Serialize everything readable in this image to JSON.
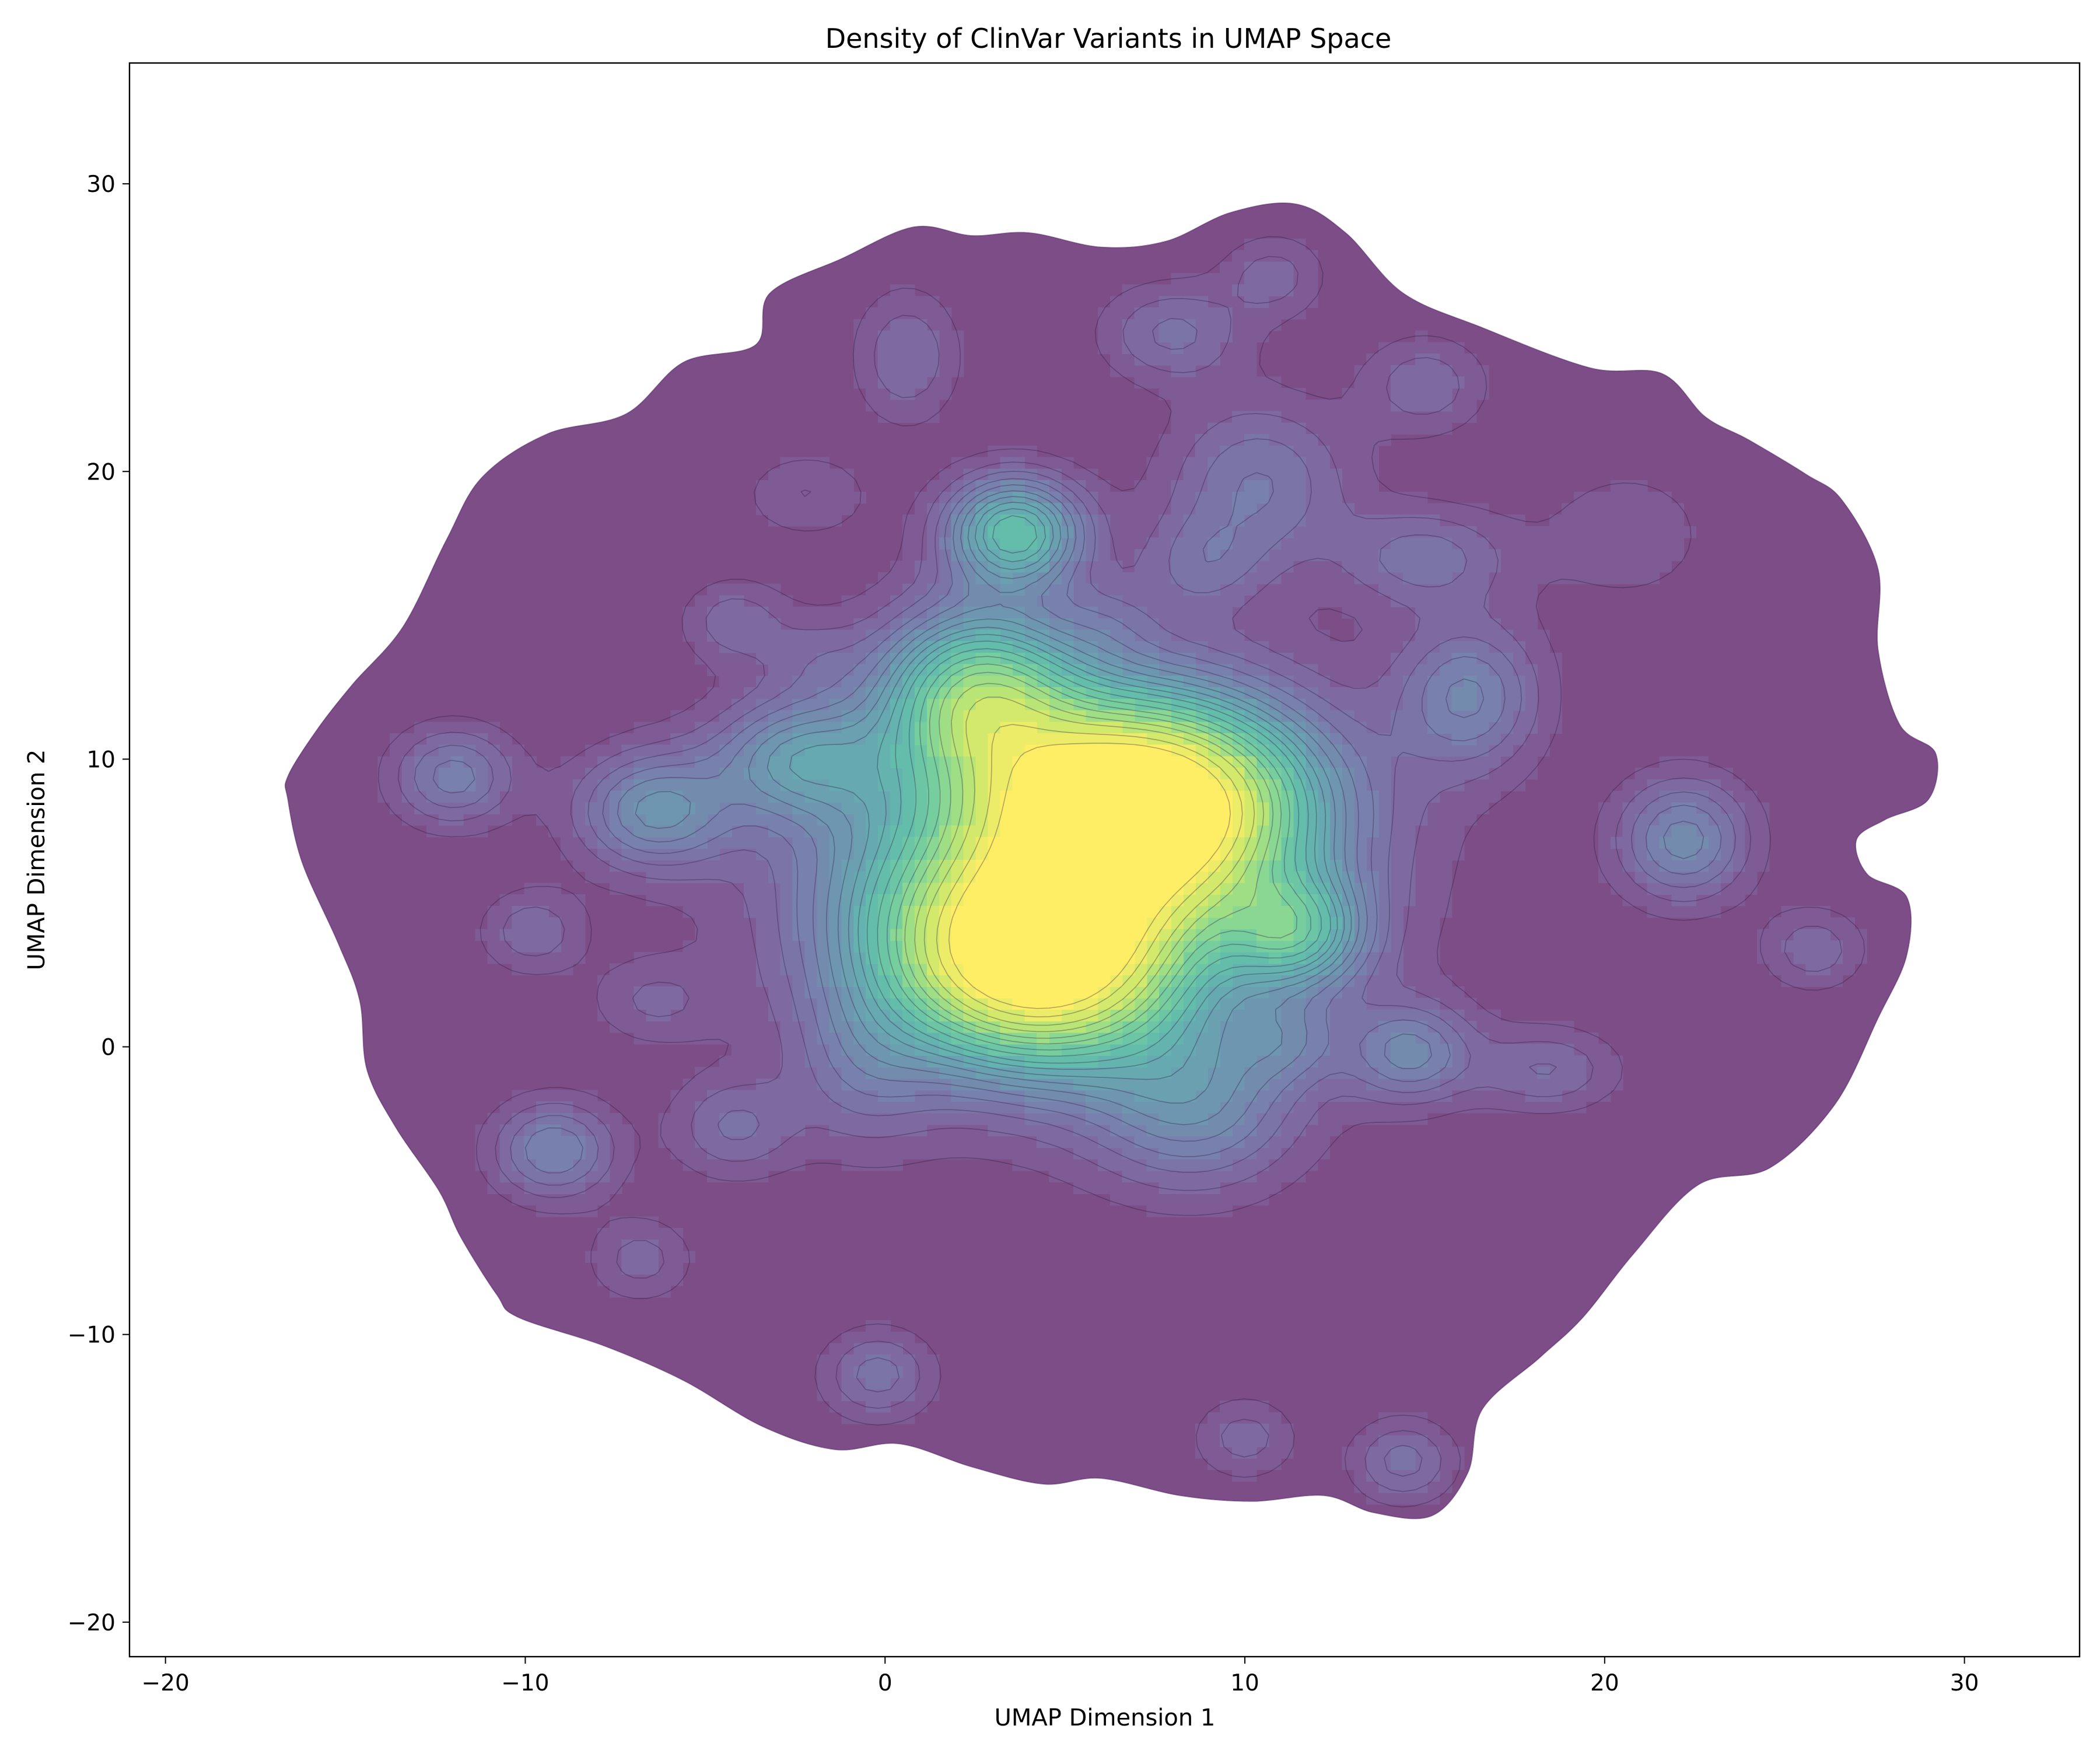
{
  "chart_data": {
    "type": "contour",
    "title": "Density of ClinVar Variants in UMAP Space",
    "xlabel": "UMAP Dimension 1",
    "ylabel": "UMAP Dimension 2",
    "xlim": [
      -21,
      33.2
    ],
    "ylim": [
      -21.2,
      34.2
    ],
    "xticks": [
      -20,
      -10,
      0,
      10,
      20,
      30
    ],
    "yticks": [
      -20,
      -10,
      0,
      10,
      20,
      30
    ],
    "xtick_labels": [
      "−20",
      "−10",
      "0",
      "10",
      "20",
      "30"
    ],
    "ytick_labels": [
      "−20",
      "−10",
      "0",
      "10",
      "20",
      "30"
    ],
    "grid": false,
    "colormap": "viridis",
    "fill_alpha": 0.7,
    "support_outline": [
      [
        -16.6,
        9.4
      ],
      [
        -15.8,
        11.0
      ],
      [
        -14.8,
        12.6
      ],
      [
        -13.4,
        14.6
      ],
      [
        -12.2,
        17.6
      ],
      [
        -11.2,
        19.8
      ],
      [
        -9.4,
        21.3
      ],
      [
        -7.2,
        22.0
      ],
      [
        -5.6,
        23.8
      ],
      [
        -3.6,
        24.4
      ],
      [
        -3.2,
        26.2
      ],
      [
        -1.2,
        27.4
      ],
      [
        0.8,
        28.5
      ],
      [
        2.4,
        28.2
      ],
      [
        4.0,
        28.3
      ],
      [
        6.0,
        27.8
      ],
      [
        7.8,
        28.0
      ],
      [
        9.6,
        29.0
      ],
      [
        11.4,
        29.3
      ],
      [
        12.8,
        28.3
      ],
      [
        14.4,
        26.2
      ],
      [
        16.6,
        25.0
      ],
      [
        19.6,
        23.6
      ],
      [
        21.6,
        23.4
      ],
      [
        22.8,
        21.9
      ],
      [
        24.0,
        21.1
      ],
      [
        25.6,
        19.9
      ],
      [
        26.6,
        19.0
      ],
      [
        27.6,
        16.6
      ],
      [
        27.6,
        13.8
      ],
      [
        28.2,
        11.2
      ],
      [
        29.2,
        10.2
      ],
      [
        29.0,
        8.6
      ],
      [
        27.8,
        7.9
      ],
      [
        27.0,
        7.2
      ],
      [
        27.3,
        6.0
      ],
      [
        28.4,
        5.2
      ],
      [
        28.4,
        3.2
      ],
      [
        27.6,
        1.0
      ],
      [
        26.4,
        -2.0
      ],
      [
        24.6,
        -4.2
      ],
      [
        22.6,
        -4.8
      ],
      [
        20.8,
        -7.2
      ],
      [
        19.4,
        -9.4
      ],
      [
        18.2,
        -10.8
      ],
      [
        16.6,
        -12.6
      ],
      [
        16.2,
        -14.8
      ],
      [
        15.2,
        -16.3
      ],
      [
        13.6,
        -16.2
      ],
      [
        12.2,
        -15.6
      ],
      [
        10.2,
        -15.8
      ],
      [
        8.2,
        -15.6
      ],
      [
        6.0,
        -15.0
      ],
      [
        4.4,
        -15.2
      ],
      [
        2.4,
        -14.6
      ],
      [
        0.4,
        -13.8
      ],
      [
        -1.4,
        -14.0
      ],
      [
        -3.4,
        -13.2
      ],
      [
        -5.6,
        -11.6
      ],
      [
        -7.8,
        -10.4
      ],
      [
        -10.2,
        -9.4
      ],
      [
        -10.8,
        -8.6
      ],
      [
        -11.8,
        -6.6
      ],
      [
        -12.4,
        -5.0
      ],
      [
        -13.6,
        -2.8
      ],
      [
        -14.4,
        -0.8
      ],
      [
        -14.6,
        1.6
      ],
      [
        -15.2,
        3.6
      ],
      [
        -16.2,
        6.4
      ],
      [
        -16.6,
        8.6
      ]
    ],
    "density_peaks": [
      {
        "x": 7.0,
        "y": 8.4,
        "sx": 3.0,
        "sy": 2.4,
        "w": 1.0
      },
      {
        "x": 4.2,
        "y": 3.2,
        "sx": 2.6,
        "sy": 2.4,
        "w": 0.93
      },
      {
        "x": 2.6,
        "y": 12.2,
        "sx": 1.8,
        "sy": 2.0,
        "w": 0.5
      },
      {
        "x": 3.6,
        "y": 17.9,
        "sx": 1.3,
        "sy": 1.3,
        "w": 0.43
      },
      {
        "x": 11.4,
        "y": 4.0,
        "sx": 1.3,
        "sy": 1.3,
        "w": 0.34
      },
      {
        "x": 5.2,
        "y": 6.0,
        "sx": 5.0,
        "sy": 4.6,
        "w": 0.3
      },
      {
        "x": -2.4,
        "y": 10.0,
        "sx": 1.6,
        "sy": 1.4,
        "w": 0.24
      },
      {
        "x": -6.4,
        "y": 8.2,
        "sx": 1.5,
        "sy": 1.4,
        "w": 0.24
      },
      {
        "x": 16.2,
        "y": 12.2,
        "sx": 1.4,
        "sy": 1.8,
        "w": 0.2
      },
      {
        "x": 22.2,
        "y": 7.2,
        "sx": 1.3,
        "sy": 1.5,
        "w": 0.22
      },
      {
        "x": 14.6,
        "y": -0.2,
        "sx": 1.2,
        "sy": 1.2,
        "w": 0.2
      },
      {
        "x": 8.6,
        "y": -2.0,
        "sx": 2.0,
        "sy": 2.0,
        "w": 0.2
      },
      {
        "x": -9.2,
        "y": -3.6,
        "sx": 1.2,
        "sy": 1.2,
        "w": 0.2
      },
      {
        "x": 10.4,
        "y": 19.6,
        "sx": 1.8,
        "sy": 2.0,
        "w": 0.16
      },
      {
        "x": -12.0,
        "y": 9.4,
        "sx": 1.2,
        "sy": 1.2,
        "w": 0.18
      },
      {
        "x": 15.0,
        "y": 17.0,
        "sx": 1.6,
        "sy": 1.2,
        "w": 0.14
      },
      {
        "x": 8.0,
        "y": 24.8,
        "sx": 1.4,
        "sy": 1.2,
        "w": 0.13
      },
      {
        "x": 0.6,
        "y": 24.0,
        "sx": 1.0,
        "sy": 1.6,
        "w": 0.12
      },
      {
        "x": -0.2,
        "y": -11.4,
        "sx": 1.1,
        "sy": 1.1,
        "w": 0.14
      },
      {
        "x": 14.4,
        "y": -14.4,
        "sx": 1.0,
        "sy": 1.0,
        "w": 0.14
      },
      {
        "x": 18.4,
        "y": -0.8,
        "sx": 1.4,
        "sy": 1.0,
        "w": 0.12
      },
      {
        "x": -4.2,
        "y": -2.8,
        "sx": 1.2,
        "sy": 1.2,
        "w": 0.12
      },
      {
        "x": 15.0,
        "y": 23.0,
        "sx": 1.2,
        "sy": 1.2,
        "w": 0.11
      },
      {
        "x": 25.8,
        "y": 3.4,
        "sx": 1.0,
        "sy": 1.0,
        "w": 0.11
      },
      {
        "x": -9.8,
        "y": 4.0,
        "sx": 1.0,
        "sy": 1.0,
        "w": 0.11
      },
      {
        "x": -4.2,
        "y": 14.8,
        "sx": 1.0,
        "sy": 1.0,
        "w": 0.1
      },
      {
        "x": 10.8,
        "y": 26.8,
        "sx": 1.0,
        "sy": 1.0,
        "w": 0.1
      },
      {
        "x": 11.2,
        "y": 0.2,
        "sx": 1.0,
        "sy": 1.0,
        "w": 0.1
      },
      {
        "x": -6.8,
        "y": -7.4,
        "sx": 1.0,
        "sy": 1.0,
        "w": 0.1
      },
      {
        "x": 10.0,
        "y": -13.6,
        "sx": 1.0,
        "sy": 1.0,
        "w": 0.1
      },
      {
        "x": -0.6,
        "y": -0.8,
        "sx": 1.4,
        "sy": 2.0,
        "w": 0.1
      },
      {
        "x": 0.0,
        "y": 5.2,
        "sx": 2.0,
        "sy": 3.0,
        "w": 0.08
      },
      {
        "x": 8.8,
        "y": 16.8,
        "sx": 1.2,
        "sy": 1.2,
        "w": 0.1
      },
      {
        "x": -2.2,
        "y": 19.2,
        "sx": 1.2,
        "sy": 1.0,
        "w": 0.08
      },
      {
        "x": 6.2,
        "y": 14.8,
        "sx": 1.0,
        "sy": 1.0,
        "w": 0.06
      },
      {
        "x": -6.4,
        "y": 1.6,
        "sx": 1.2,
        "sy": 1.0,
        "w": 0.08
      },
      {
        "x": 20.6,
        "y": 17.8,
        "sx": 2.0,
        "sy": 2.0,
        "w": 0.06
      },
      {
        "x": -2.0,
        "y": 13.6,
        "sx": 1.0,
        "sy": 1.0,
        "w": 0.06
      }
    ],
    "contour_levels": [
      0.04,
      0.08,
      0.12,
      0.16,
      0.2,
      0.24,
      0.28,
      0.32,
      0.36,
      0.4,
      0.45,
      0.5,
      0.55,
      0.6,
      0.66,
      0.72,
      0.8,
      0.88
    ]
  }
}
